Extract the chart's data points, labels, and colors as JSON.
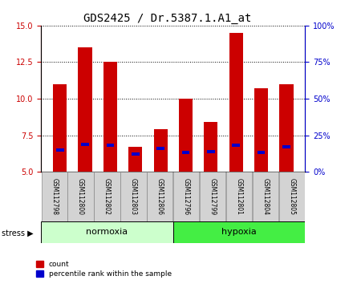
{
  "title": "GDS2425 / Dr.5387.1.A1_at",
  "samples": [
    "GSM112798",
    "GSM112800",
    "GSM112802",
    "GSM112803",
    "GSM112806",
    "GSM112796",
    "GSM112799",
    "GSM112801",
    "GSM112804",
    "GSM112805"
  ],
  "count_values": [
    11.0,
    13.5,
    12.5,
    6.7,
    7.9,
    10.0,
    8.4,
    14.5,
    10.7,
    11.0
  ],
  "percentile_values": [
    6.5,
    6.9,
    6.8,
    6.2,
    6.6,
    6.3,
    6.4,
    6.8,
    6.3,
    6.7
  ],
  "ymin": 5,
  "ymax": 15,
  "yticks": [
    5,
    7.5,
    10,
    12.5,
    15
  ],
  "y2ticks": [
    0,
    25,
    50,
    75,
    100
  ],
  "bar_color": "#cc0000",
  "percentile_color": "#0000cc",
  "groups": [
    {
      "label": "normoxia",
      "start": 0,
      "end": 5,
      "color": "#ccffcc"
    },
    {
      "label": "hypoxia",
      "start": 5,
      "end": 10,
      "color": "#44ee44"
    }
  ],
  "bar_width": 0.55,
  "title_fontsize": 10,
  "tick_fontsize": 7,
  "sample_fontsize": 5.5,
  "group_fontsize": 8,
  "legend_fontsize": 6.5,
  "bar_bottom": 5,
  "background_color": "#ffffff"
}
